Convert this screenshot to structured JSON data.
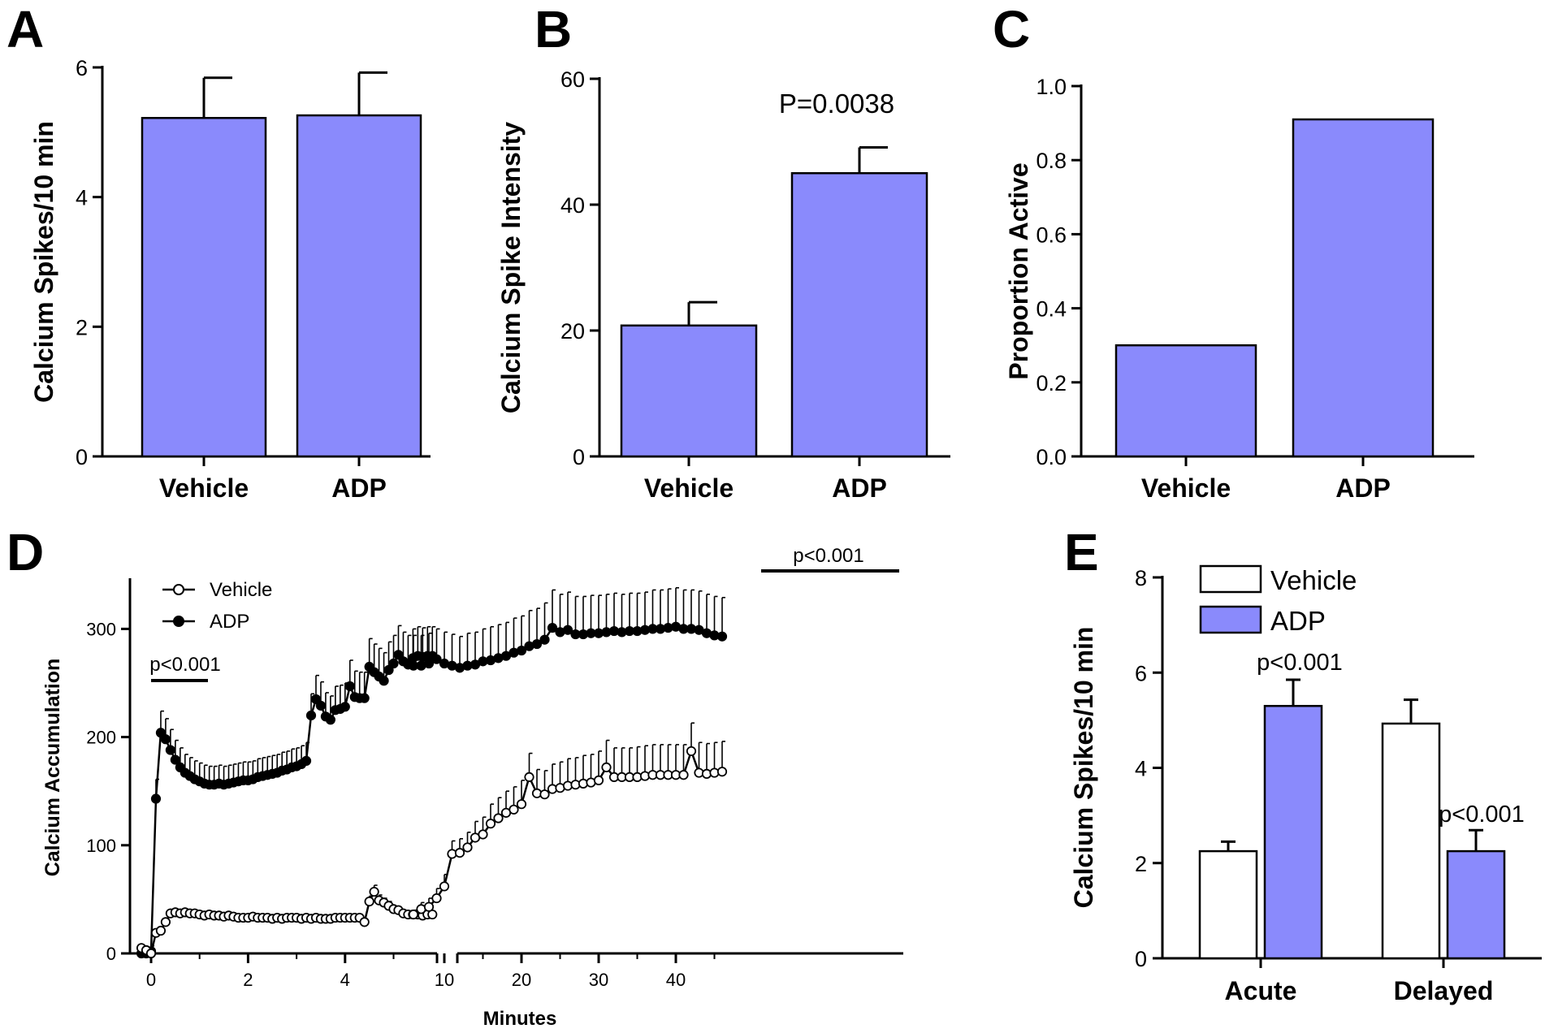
{
  "chart_data": [
    {
      "panel": "A",
      "type": "bar",
      "categories": [
        "Vehicle",
        "ADP"
      ],
      "values": [
        5.22,
        5.26
      ],
      "errors": [
        0.62,
        0.66
      ],
      "ylabel": "Calcium Spikes/10 min",
      "ylim": [
        0,
        6
      ],
      "yticks": [
        "0",
        "2",
        "4",
        "6"
      ],
      "bar_color": "#8a8afc"
    },
    {
      "panel": "B",
      "type": "bar",
      "categories": [
        "Vehicle",
        "ADP"
      ],
      "values": [
        20.8,
        45.0
      ],
      "errors": [
        3.7,
        4.1
      ],
      "ylabel": "Calcium Spike Intensity",
      "ylim": [
        0,
        60
      ],
      "yticks": [
        "0",
        "20",
        "40",
        "60"
      ],
      "annotation": "P=0.0038",
      "bar_color": "#8a8afc"
    },
    {
      "panel": "C",
      "type": "bar",
      "categories": [
        "Vehicle",
        "ADP"
      ],
      "values": [
        0.3,
        0.91
      ],
      "ylabel": "Proportion Active",
      "ylim": [
        0,
        1.0
      ],
      "yticks": [
        "0.0",
        "0.2",
        "0.4",
        "0.6",
        "0.8",
        "1.0"
      ],
      "bar_color": "#8a8afc"
    },
    {
      "panel": "D",
      "type": "line",
      "xlabel": "Minutes",
      "ylabel": "Calcium Accumulation",
      "ylim": [
        0,
        340
      ],
      "yticks": [
        "0",
        "100",
        "200",
        "300"
      ],
      "xticks_left": [
        "0",
        "2",
        "4"
      ],
      "xticks_right": [
        "10",
        "20",
        "30",
        "40"
      ],
      "x_break": true,
      "annotations": [
        "p<0.001",
        "p<0.001"
      ],
      "legend": [
        "Vehicle",
        "ADP"
      ],
      "series": [
        {
          "name": "Vehicle",
          "marker": "open-circle",
          "early": {
            "x": [
              -0.2,
              -0.1,
              0.0,
              0.1,
              0.2,
              0.3,
              0.4,
              0.5,
              0.6,
              0.7,
              0.8,
              0.9,
              1.0,
              1.1,
              1.2,
              1.3,
              1.4,
              1.5,
              1.6,
              1.7,
              1.8,
              1.9,
              2.0,
              2.1,
              2.2,
              2.3,
              2.4,
              2.5,
              2.6,
              2.7,
              2.8,
              2.9,
              3.0,
              3.1,
              3.2,
              3.3,
              3.4,
              3.5,
              3.6,
              3.7,
              3.8,
              3.9,
              4.0,
              4.1,
              4.2,
              4.3,
              4.4,
              4.5,
              4.6,
              4.7,
              4.8,
              4.9,
              5.0,
              5.1,
              5.2,
              5.3,
              5.4,
              5.5,
              5.6,
              5.7,
              5.8
            ],
            "y": [
              5,
              3,
              0,
              19,
              21,
              29,
              37,
              38,
              37,
              38,
              37,
              37,
              36,
              35,
              36,
              35,
              35,
              34,
              35,
              34,
              33,
              33,
              33,
              34,
              33,
              33,
              33,
              32,
              33,
              32,
              33,
              33,
              33,
              32,
              33,
              32,
              33,
              32,
              32,
              32,
              33,
              33,
              33,
              33,
              33,
              33,
              29,
              48,
              57,
              49,
              47,
              44,
              41,
              40,
              37,
              36,
              36,
              36,
              35,
              36,
              36
            ],
            "err": [
              2,
              2,
              2,
              3,
              3,
              3,
              3,
              3,
              3,
              3,
              3,
              3,
              3,
              3,
              3,
              3,
              3,
              3,
              3,
              3,
              3,
              3,
              3,
              3,
              3,
              3,
              3,
              3,
              3,
              3,
              3,
              3,
              3,
              3,
              3,
              3,
              3,
              3,
              3,
              3,
              3,
              3,
              3,
              3,
              3,
              3,
              3,
              5,
              6,
              5,
              4,
              4,
              3,
              3,
              3,
              3,
              3,
              3,
              3,
              3,
              3
            ]
          },
          "late": {
            "x": [
              6,
              7,
              8,
              9,
              10,
              11,
              12,
              13,
              14,
              15,
              16,
              17,
              18,
              19,
              20,
              21,
              22,
              23,
              24,
              25,
              26,
              27,
              28,
              29,
              30,
              31,
              32,
              33,
              34,
              35,
              36,
              37,
              38,
              39,
              40,
              41,
              42,
              43,
              44,
              45,
              46
            ],
            "y": [
              36,
              41,
              43,
              51,
              62,
              92,
              93,
              98,
              107,
              110,
              120,
              125,
              130,
              133,
              138,
              163,
              148,
              147,
              152,
              153,
              155,
              156,
              157,
              158,
              160,
              172,
              163,
              163,
              163,
              163,
              164,
              165,
              165,
              165,
              165,
              165,
              187,
              167,
              166,
              167,
              168
            ],
            "err": [
              4,
              6,
              8,
              9,
              11,
              12,
              13,
              14,
              15,
              16,
              18,
              19,
              20,
              21,
              22,
              22,
              22,
              22,
              23,
              24,
              25,
              25,
              26,
              26,
              27,
              25,
              27,
              27,
              27,
              28,
              28,
              28,
              28,
              28,
              28,
              28,
              26,
              28,
              28,
              28,
              28
            ]
          }
        },
        {
          "name": "ADP",
          "marker": "filled-circle",
          "early": {
            "x": [
              -0.2,
              -0.1,
              0.0,
              0.1,
              0.2,
              0.3,
              0.4,
              0.5,
              0.6,
              0.7,
              0.8,
              0.9,
              1.0,
              1.1,
              1.2,
              1.3,
              1.4,
              1.5,
              1.6,
              1.7,
              1.8,
              1.9,
              2.0,
              2.1,
              2.2,
              2.3,
              2.4,
              2.5,
              2.6,
              2.7,
              2.8,
              2.9,
              3.0,
              3.1,
              3.2,
              3.3,
              3.4,
              3.5,
              3.6,
              3.7,
              3.8,
              3.9,
              4.0,
              4.1,
              4.2,
              4.3,
              4.4,
              4.5,
              4.6,
              4.7,
              4.8,
              4.9,
              5.0,
              5.1,
              5.2,
              5.3,
              5.4,
              5.5,
              5.6,
              5.7,
              5.8
            ],
            "y": [
              0,
              0,
              2,
              143,
              204,
              198,
              188,
              179,
              172,
              167,
              164,
              161,
              159,
              157,
              156,
              156,
              157,
              156,
              157,
              158,
              159,
              160,
              160,
              161,
              163,
              164,
              165,
              166,
              167,
              169,
              170,
              172,
              173,
              175,
              178,
              220,
              235,
              229,
              219,
              216,
              225,
              226,
              228,
              247,
              237,
              236,
              236,
              265,
              260,
              256,
              252,
              262,
              268,
              276,
              270,
              267,
              273,
              275,
              274,
              275,
              275
            ],
            "err": [
              3,
              3,
              5,
              18,
              20,
              19,
              19,
              18,
              18,
              17,
              17,
              17,
              17,
              17,
              17,
              17,
              17,
              17,
              17,
              17,
              17,
              17,
              17,
              17,
              17,
              17,
              17,
              17,
              17,
              17,
              17,
              17,
              17,
              17,
              17,
              20,
              22,
              22,
              22,
              22,
              22,
              22,
              22,
              24,
              24,
              24,
              24,
              26,
              26,
              26,
              26,
              26,
              26,
              27,
              27,
              27,
              27,
              27,
              27,
              27,
              27
            ]
          },
          "late": {
            "x": [
              6,
              7,
              8,
              9,
              10,
              11,
              12,
              13,
              14,
              15,
              16,
              17,
              18,
              19,
              20,
              21,
              22,
              23,
              24,
              25,
              26,
              27,
              28,
              29,
              30,
              31,
              32,
              33,
              34,
              35,
              36,
              37,
              38,
              39,
              40,
              41,
              42,
              43,
              44,
              45,
              46
            ],
            "y": [
              266,
              266,
              268,
              272,
              268,
              266,
              264,
              266,
              267,
              270,
              271,
              273,
              275,
              278,
              280,
              284,
              286,
              290,
              301,
              297,
              299,
              295,
              295,
              296,
              296,
              297,
              298,
              297,
              298,
              298,
              299,
              300,
              300,
              301,
              302,
              300,
              300,
              299,
              296,
              294,
              293
            ],
            "err": [
              28,
              28,
              28,
              28,
              29,
              29,
              29,
              30,
              30,
              30,
              31,
              31,
              31,
              32,
              32,
              33,
              33,
              34,
              35,
              35,
              35,
              35,
              35,
              35,
              35,
              35,
              35,
              35,
              35,
              35,
              35,
              36,
              36,
              36,
              36,
              36,
              36,
              36,
              36,
              36,
              36
            ]
          }
        }
      ]
    },
    {
      "panel": "E",
      "type": "bar",
      "categories": [
        "Acute",
        "Delayed"
      ],
      "ylabel": "Calcium Spikes/10 min",
      "ylim": [
        0,
        8
      ],
      "yticks": [
        "0",
        "2",
        "4",
        "6",
        "8"
      ],
      "legend": [
        "Vehicle",
        "ADP"
      ],
      "annotations": [
        "p<0.001",
        "p<0.001"
      ],
      "series": [
        {
          "name": "Vehicle",
          "values": [
            2.25,
            4.93
          ],
          "errors": [
            0.2,
            0.5
          ],
          "color": "#ffffff"
        },
        {
          "name": "ADP",
          "values": [
            5.3,
            2.25
          ],
          "errors": [
            0.55,
            0.44
          ],
          "color": "#8a8afc"
        }
      ]
    }
  ]
}
